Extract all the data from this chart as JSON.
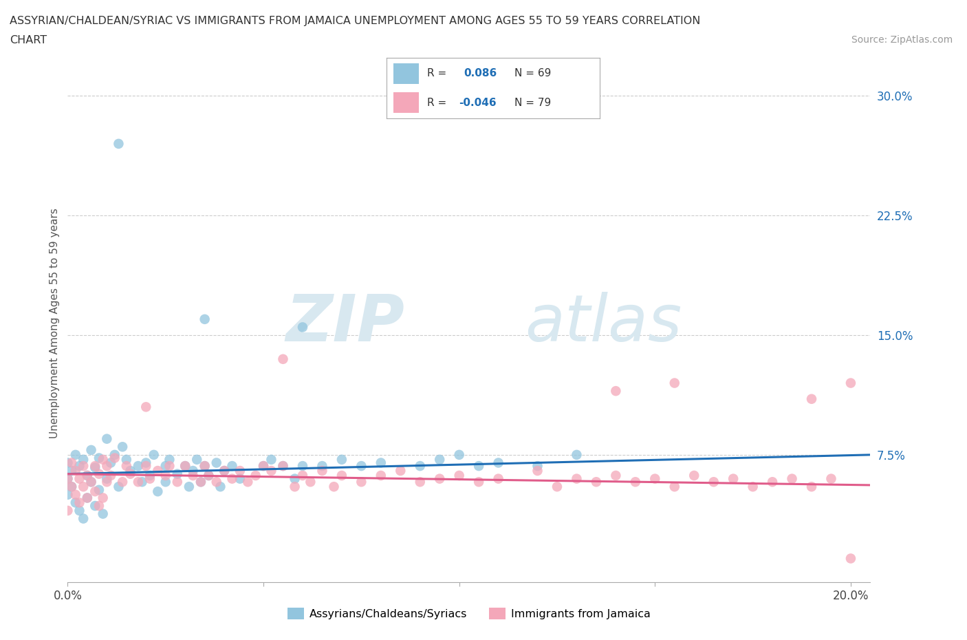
{
  "title_line1": "ASSYRIAN/CHALDEAN/SYRIAC VS IMMIGRANTS FROM JAMAICA UNEMPLOYMENT AMONG AGES 55 TO 59 YEARS CORRELATION",
  "title_line2": "CHART",
  "source_text": "Source: ZipAtlas.com",
  "ylabel": "Unemployment Among Ages 55 to 59 years",
  "xlim": [
    0.0,
    0.205
  ],
  "ylim": [
    -0.005,
    0.32
  ],
  "xticks": [
    0.0,
    0.05,
    0.1,
    0.15,
    0.2
  ],
  "xtick_labels": [
    "0.0%",
    "",
    "",
    "",
    "20.0%"
  ],
  "yticks": [
    0.0,
    0.075,
    0.15,
    0.225,
    0.3
  ],
  "ytick_labels": [
    "",
    "7.5%",
    "15.0%",
    "22.5%",
    "30.0%"
  ],
  "legend_R1": "0.086",
  "legend_N1": "69",
  "legend_R2": "-0.046",
  "legend_N2": "79",
  "color_blue": "#92c5de",
  "color_pink": "#f4a7b9",
  "trend_color_blue": "#1f6eb5",
  "trend_color_pink": "#e05c8a",
  "background_color": "#ffffff",
  "watermark_zip": "ZIP",
  "watermark_atlas": "atlas",
  "grid_color": "#cccccc",
  "label_color_blue": "#1f6eb5",
  "label_color_dark": "#333333",
  "source_color": "#999999",
  "trend_blue_y0": 0.063,
  "trend_blue_y1": 0.075,
  "trend_pink_y0": 0.063,
  "trend_pink_y1": 0.056
}
